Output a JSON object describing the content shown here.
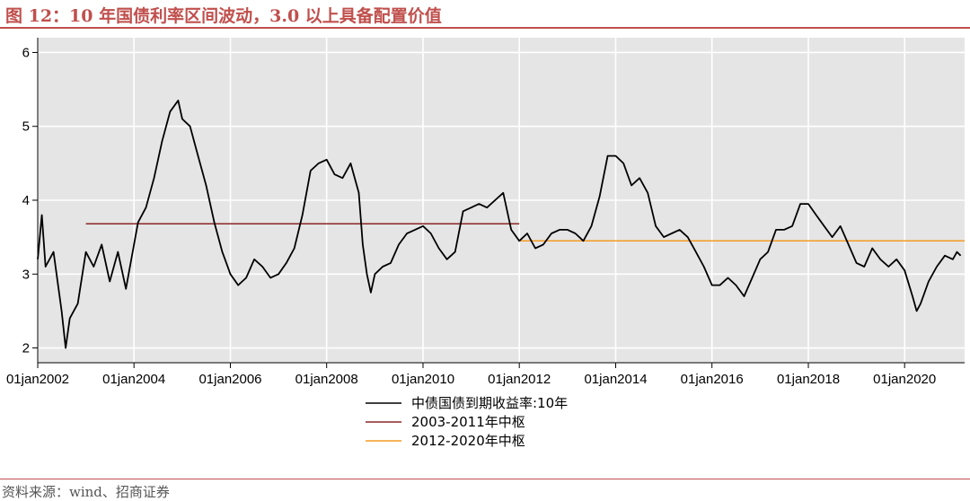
{
  "header": {
    "title": "图 12：10 年国债利率区间波动，3.0 以上具备配置价值"
  },
  "footer": {
    "source": "资料来源：wind、招商证券"
  },
  "colors": {
    "series": "#000000",
    "center_2003_2011": "#8b2525",
    "center_2012_2020": "#f59a23",
    "plot_bg": "#e5e5e5",
    "accent": "#c0504d"
  },
  "chart_data": {
    "type": "line",
    "title": "",
    "xlabel": "",
    "ylabel": "",
    "xlim": [
      "2002-01-01",
      "2021-03-31"
    ],
    "ylim": [
      1.8,
      6.2
    ],
    "yticks": [
      2,
      3,
      4,
      5,
      6
    ],
    "xticks": [
      {
        "date": "2002-01-01",
        "label": "01jan2002"
      },
      {
        "date": "2004-01-01",
        "label": "01jan2004"
      },
      {
        "date": "2006-01-01",
        "label": "01jan2006"
      },
      {
        "date": "2008-01-01",
        "label": "01jan2008"
      },
      {
        "date": "2010-01-01",
        "label": "01jan2010"
      },
      {
        "date": "2012-01-01",
        "label": "01jan2012"
      },
      {
        "date": "2014-01-01",
        "label": "01jan2014"
      },
      {
        "date": "2016-01-01",
        "label": "01jan2016"
      },
      {
        "date": "2018-01-01",
        "label": "01jan2018"
      },
      {
        "date": "2020-01-01",
        "label": "01jan2020"
      }
    ],
    "grid": true,
    "legend": "bottom",
    "series": [
      {
        "name": "中债国债到期收益率:10年",
        "color": "#000000",
        "points": [
          [
            "2002-01-01",
            3.2
          ],
          [
            "2002-02-01",
            3.8
          ],
          [
            "2002-03-01",
            3.1
          ],
          [
            "2002-05-01",
            3.3
          ],
          [
            "2002-07-01",
            2.5
          ],
          [
            "2002-08-01",
            2.0
          ],
          [
            "2002-09-01",
            2.4
          ],
          [
            "2002-11-01",
            2.6
          ],
          [
            "2003-01-01",
            3.3
          ],
          [
            "2003-03-01",
            3.1
          ],
          [
            "2003-05-01",
            3.4
          ],
          [
            "2003-07-01",
            2.9
          ],
          [
            "2003-09-01",
            3.3
          ],
          [
            "2003-11-01",
            2.8
          ],
          [
            "2004-01-01",
            3.4
          ],
          [
            "2004-02-01",
            3.7
          ],
          [
            "2004-04-01",
            3.9
          ],
          [
            "2004-06-01",
            4.3
          ],
          [
            "2004-08-01",
            4.8
          ],
          [
            "2004-10-01",
            5.2
          ],
          [
            "2004-12-01",
            5.35
          ],
          [
            "2005-01-01",
            5.1
          ],
          [
            "2005-03-01",
            5.0
          ],
          [
            "2005-05-01",
            4.6
          ],
          [
            "2005-07-01",
            4.2
          ],
          [
            "2005-09-01",
            3.7
          ],
          [
            "2005-11-01",
            3.3
          ],
          [
            "2006-01-01",
            3.0
          ],
          [
            "2006-03-01",
            2.85
          ],
          [
            "2006-05-01",
            2.95
          ],
          [
            "2006-07-01",
            3.2
          ],
          [
            "2006-09-01",
            3.1
          ],
          [
            "2006-11-01",
            2.95
          ],
          [
            "2007-01-01",
            3.0
          ],
          [
            "2007-03-01",
            3.15
          ],
          [
            "2007-05-01",
            3.35
          ],
          [
            "2007-07-01",
            3.8
          ],
          [
            "2007-09-01",
            4.4
          ],
          [
            "2007-11-01",
            4.5
          ],
          [
            "2008-01-01",
            4.55
          ],
          [
            "2008-03-01",
            4.35
          ],
          [
            "2008-05-01",
            4.3
          ],
          [
            "2008-07-01",
            4.5
          ],
          [
            "2008-09-01",
            4.1
          ],
          [
            "2008-10-01",
            3.4
          ],
          [
            "2008-11-01",
            3.0
          ],
          [
            "2008-12-01",
            2.75
          ],
          [
            "2009-01-01",
            3.0
          ],
          [
            "2009-03-01",
            3.1
          ],
          [
            "2009-05-01",
            3.15
          ],
          [
            "2009-07-01",
            3.4
          ],
          [
            "2009-09-01",
            3.55
          ],
          [
            "2009-11-01",
            3.6
          ],
          [
            "2010-01-01",
            3.65
          ],
          [
            "2010-03-01",
            3.55
          ],
          [
            "2010-05-01",
            3.35
          ],
          [
            "2010-07-01",
            3.2
          ],
          [
            "2010-09-01",
            3.3
          ],
          [
            "2010-11-01",
            3.85
          ],
          [
            "2011-01-01",
            3.9
          ],
          [
            "2011-03-01",
            3.95
          ],
          [
            "2011-05-01",
            3.9
          ],
          [
            "2011-07-01",
            4.0
          ],
          [
            "2011-09-01",
            4.1
          ],
          [
            "2011-11-01",
            3.6
          ],
          [
            "2012-01-01",
            3.45
          ],
          [
            "2012-03-01",
            3.55
          ],
          [
            "2012-05-01",
            3.35
          ],
          [
            "2012-07-01",
            3.4
          ],
          [
            "2012-09-01",
            3.55
          ],
          [
            "2012-11-01",
            3.6
          ],
          [
            "2013-01-01",
            3.6
          ],
          [
            "2013-03-01",
            3.55
          ],
          [
            "2013-05-01",
            3.45
          ],
          [
            "2013-07-01",
            3.65
          ],
          [
            "2013-09-01",
            4.05
          ],
          [
            "2013-11-01",
            4.6
          ],
          [
            "2014-01-01",
            4.6
          ],
          [
            "2014-03-01",
            4.5
          ],
          [
            "2014-05-01",
            4.2
          ],
          [
            "2014-07-01",
            4.3
          ],
          [
            "2014-09-01",
            4.1
          ],
          [
            "2014-11-01",
            3.65
          ],
          [
            "2015-01-01",
            3.5
          ],
          [
            "2015-03-01",
            3.55
          ],
          [
            "2015-05-01",
            3.6
          ],
          [
            "2015-07-01",
            3.5
          ],
          [
            "2015-09-01",
            3.3
          ],
          [
            "2015-11-01",
            3.1
          ],
          [
            "2016-01-01",
            2.85
          ],
          [
            "2016-03-01",
            2.85
          ],
          [
            "2016-05-01",
            2.95
          ],
          [
            "2016-07-01",
            2.85
          ],
          [
            "2016-09-01",
            2.7
          ],
          [
            "2016-11-01",
            2.95
          ],
          [
            "2017-01-01",
            3.2
          ],
          [
            "2017-03-01",
            3.3
          ],
          [
            "2017-05-01",
            3.6
          ],
          [
            "2017-07-01",
            3.6
          ],
          [
            "2017-09-01",
            3.65
          ],
          [
            "2017-11-01",
            3.95
          ],
          [
            "2018-01-01",
            3.95
          ],
          [
            "2018-03-01",
            3.8
          ],
          [
            "2018-05-01",
            3.65
          ],
          [
            "2018-07-01",
            3.5
          ],
          [
            "2018-09-01",
            3.65
          ],
          [
            "2018-11-01",
            3.4
          ],
          [
            "2019-01-01",
            3.15
          ],
          [
            "2019-03-01",
            3.1
          ],
          [
            "2019-05-01",
            3.35
          ],
          [
            "2019-07-01",
            3.2
          ],
          [
            "2019-09-01",
            3.1
          ],
          [
            "2019-11-01",
            3.2
          ],
          [
            "2020-01-01",
            3.05
          ],
          [
            "2020-03-01",
            2.7
          ],
          [
            "2020-04-01",
            2.5
          ],
          [
            "2020-05-01",
            2.6
          ],
          [
            "2020-07-01",
            2.9
          ],
          [
            "2020-09-01",
            3.1
          ],
          [
            "2020-11-01",
            3.25
          ],
          [
            "2021-01-01",
            3.2
          ],
          [
            "2021-02-01",
            3.3
          ],
          [
            "2021-03-01",
            3.25
          ]
        ]
      },
      {
        "name": "2003-2011年中枢",
        "color": "#8b2525",
        "points": [
          [
            "2003-01-01",
            3.68
          ],
          [
            "2012-01-01",
            3.68
          ]
        ]
      },
      {
        "name": "2012-2020年中枢",
        "color": "#f59a23",
        "points": [
          [
            "2012-01-01",
            3.45
          ],
          [
            "2021-03-31",
            3.45
          ]
        ]
      }
    ]
  }
}
